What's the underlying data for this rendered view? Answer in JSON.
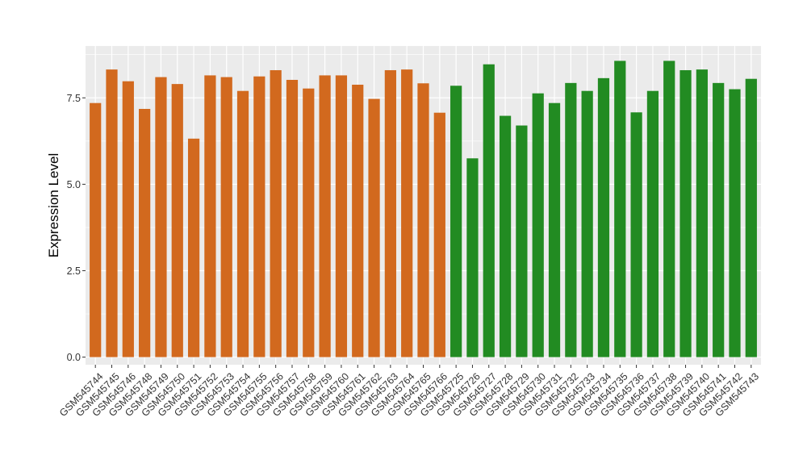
{
  "chart_data": {
    "type": "bar",
    "title": "",
    "xlabel": "",
    "ylabel": "Expression Level",
    "ylim": [
      -0.22,
      9.0
    ],
    "yticks": [
      0.0,
      2.5,
      5.0,
      7.5
    ],
    "ytick_labels": [
      "0.0",
      "2.5",
      "5.0",
      "7.5"
    ],
    "grid": true,
    "panel_background": "#ebebeb",
    "categories": [
      "GSM545744",
      "GSM545745",
      "GSM545746",
      "GSM545748",
      "GSM545749",
      "GSM545750",
      "GSM545751",
      "GSM545752",
      "GSM545753",
      "GSM545754",
      "GSM545755",
      "GSM545756",
      "GSM545757",
      "GSM545758",
      "GSM545759",
      "GSM545760",
      "GSM545761",
      "GSM545762",
      "GSM545763",
      "GSM545764",
      "GSM545765",
      "GSM545766",
      "GSM545725",
      "GSM545726",
      "GSM545727",
      "GSM545728",
      "GSM545729",
      "GSM545730",
      "GSM545731",
      "GSM545732",
      "GSM545733",
      "GSM545734",
      "GSM545735",
      "GSM545736",
      "GSM545737",
      "GSM545738",
      "GSM545739",
      "GSM545740",
      "GSM545741",
      "GSM545742",
      "GSM545743"
    ],
    "values": [
      7.35,
      8.32,
      7.98,
      7.18,
      8.1,
      7.9,
      6.32,
      8.15,
      8.1,
      7.7,
      8.12,
      8.3,
      8.02,
      7.77,
      8.15,
      8.15,
      7.88,
      7.47,
      8.3,
      8.32,
      7.92,
      7.07,
      7.85,
      5.75,
      8.47,
      6.98,
      6.7,
      7.63,
      7.35,
      7.93,
      7.7,
      8.07,
      8.57,
      7.08,
      7.7,
      8.57,
      8.3,
      8.32,
      7.93,
      7.75,
      8.05
    ],
    "colors": [
      "#d2691e",
      "#d2691e",
      "#d2691e",
      "#d2691e",
      "#d2691e",
      "#d2691e",
      "#d2691e",
      "#d2691e",
      "#d2691e",
      "#d2691e",
      "#d2691e",
      "#d2691e",
      "#d2691e",
      "#d2691e",
      "#d2691e",
      "#d2691e",
      "#d2691e",
      "#d2691e",
      "#d2691e",
      "#d2691e",
      "#d2691e",
      "#d2691e",
      "#228b22",
      "#228b22",
      "#228b22",
      "#228b22",
      "#228b22",
      "#228b22",
      "#228b22",
      "#228b22",
      "#228b22",
      "#228b22",
      "#228b22",
      "#228b22",
      "#228b22",
      "#228b22",
      "#228b22",
      "#228b22",
      "#228b22",
      "#228b22",
      "#228b22"
    ]
  }
}
